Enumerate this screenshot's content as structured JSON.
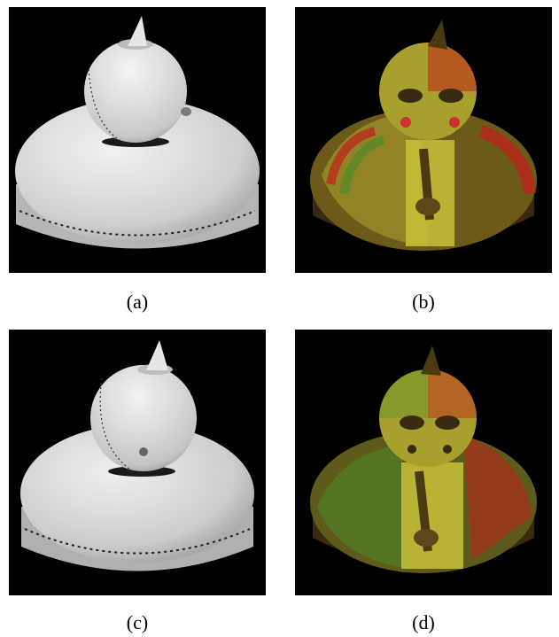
{
  "figure": {
    "panels": [
      {
        "id": "a",
        "caption": "(a)",
        "kind": "grayscale-mesh"
      },
      {
        "id": "b",
        "caption": "(b)",
        "kind": "anaglyph-texture"
      },
      {
        "id": "c",
        "caption": "(c)",
        "kind": "grayscale-mesh"
      },
      {
        "id": "d",
        "caption": "(d)",
        "kind": "anaglyph-texture"
      }
    ],
    "colors": {
      "background": "#000000",
      "mesh": "#d9d9d9",
      "anaglyph_red": "#c0201a",
      "anaglyph_green": "#4e8a2a",
      "anaglyph_yellow": "#c8c23a"
    }
  }
}
